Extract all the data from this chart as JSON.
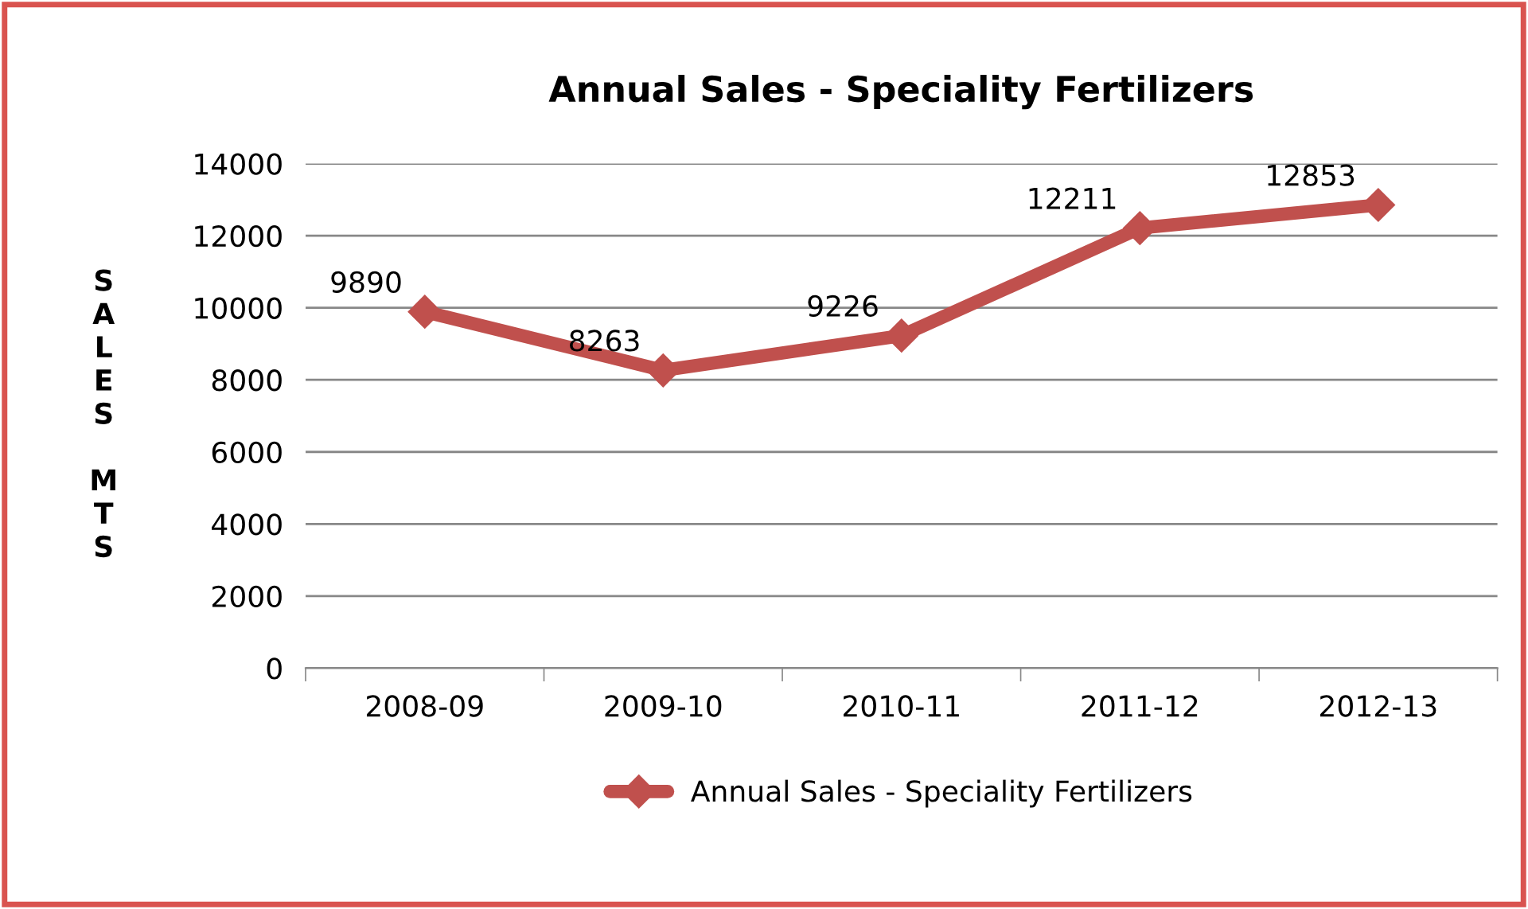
{
  "chart_data": {
    "type": "line",
    "title": "Annual Sales - Speciality Fertilizers",
    "ylabel": "SALES MTS",
    "categories": [
      "2008-09",
      "2009-10",
      "2010-11",
      "2011-12",
      "2012-13"
    ],
    "series": [
      {
        "name": "Annual Sales - Speciality Fertilizers",
        "color": "#c0504d",
        "values": [
          9890,
          8263,
          9226,
          12211,
          12853
        ]
      }
    ],
    "ylim": [
      0,
      14000
    ],
    "yticks": [
      0,
      2000,
      4000,
      6000,
      8000,
      10000,
      12000,
      14000
    ],
    "grid": "y",
    "legend": "bottom",
    "marker": "diamond",
    "line_style": "solid",
    "data_labels": true
  }
}
